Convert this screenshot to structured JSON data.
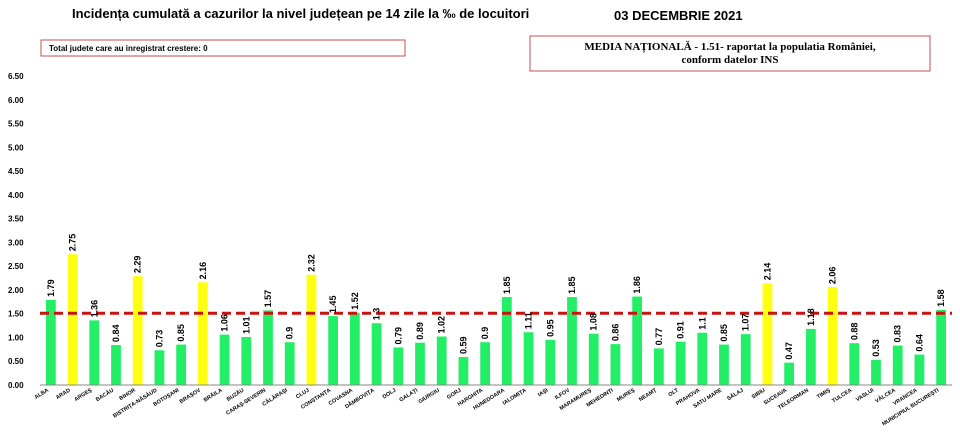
{
  "chart_data": {
    "type": "bar",
    "title": "Incidența cumulată a cazurilor la nivel județean pe 14 zile la ‰ de locuitori",
    "date": "03 DECEMBRIE 2021",
    "note": "Total judete care au inregistrat crestere: 0",
    "media": {
      "line1": "MEDIA NAȚIONALĂ - 1.51- raportat la populatia României,",
      "line2": "conform datelor INS",
      "value": 1.51
    },
    "ylim": [
      0,
      6.5
    ],
    "yticks": [
      "0.00",
      "0.50",
      "1.00",
      "1.50",
      "2.00",
      "2.50",
      "3.00",
      "3.50",
      "4.00",
      "4.50",
      "5.00",
      "5.50",
      "6.00",
      "6.50"
    ],
    "categories": [
      "ALBA",
      "ARAD",
      "ARGEȘ",
      "BACĂU",
      "BIHOR",
      "BISTRIȚA-NĂSĂUD",
      "BOTOȘANI",
      "BRAȘOV",
      "BRĂILA",
      "BUZĂU",
      "CARAȘ-SEVERIN",
      "CĂLĂRAȘI",
      "CLUJ",
      "CONSTANȚA",
      "COVASNA",
      "DÂMBOVIȚA",
      "DOLJ",
      "GALAȚI",
      "GIURGIU",
      "GORJ",
      "HARGHITA",
      "HUNEDOARA",
      "IALOMIȚA",
      "IAȘI",
      "ILFOV",
      "MARAMUREȘ",
      "MEHEDINȚI",
      "MUREȘ",
      "NEAMȚ",
      "OLT",
      "PRAHOVA",
      "SATU MARE",
      "SĂLAJ",
      "SIBIU",
      "SUCEAVA",
      "TELEORMAN",
      "TIMIȘ",
      "TULCEA",
      "VASLUI",
      "VÂLCEA",
      "VRANCEA",
      "MUNICIPIUL BUCUREȘTI"
    ],
    "values": [
      1.79,
      2.75,
      1.36,
      0.84,
      2.29,
      0.73,
      0.85,
      2.16,
      1.06,
      1.01,
      1.57,
      0.9,
      2.32,
      1.45,
      1.52,
      1.3,
      0.79,
      0.89,
      1.02,
      0.59,
      0.9,
      1.85,
      1.11,
      0.95,
      1.85,
      1.08,
      0.86,
      1.86,
      0.77,
      0.91,
      1.1,
      0.85,
      1.07,
      2.14,
      0.47,
      1.18,
      2.06,
      0.88,
      0.53,
      0.83,
      0.64,
      1.58
    ],
    "value_labels": [
      "1.79",
      "2.75",
      "1.36",
      "0.84",
      "2.29",
      "0.73",
      "0.85",
      "2.16",
      "1.06",
      "1.01",
      "1.57",
      "0.9",
      "2.32",
      "1.45",
      "1.52",
      "1.3",
      "0.79",
      "0.89",
      "1.02",
      "0.59",
      "0.9",
      "1.85",
      "1.11",
      "0.95",
      "1.85",
      "1.08",
      "0.86",
      "1.86",
      "0.77",
      "0.91",
      "1.1",
      "0.85",
      "1.07",
      "2.14",
      "0.47",
      "1.18",
      "2.06",
      "0.88",
      "0.53",
      "0.83",
      "0.64",
      "1.58"
    ],
    "colors": {
      "normal": "#22ee66",
      "highlight": "#ffff11",
      "average_line": "#cc1111",
      "box_border": "#c0504d"
    },
    "highlighted": [
      "ARAD",
      "BIHOR",
      "BRAȘOV",
      "CLUJ",
      "SIBIU",
      "TIMIȘ"
    ],
    "grid": false
  }
}
